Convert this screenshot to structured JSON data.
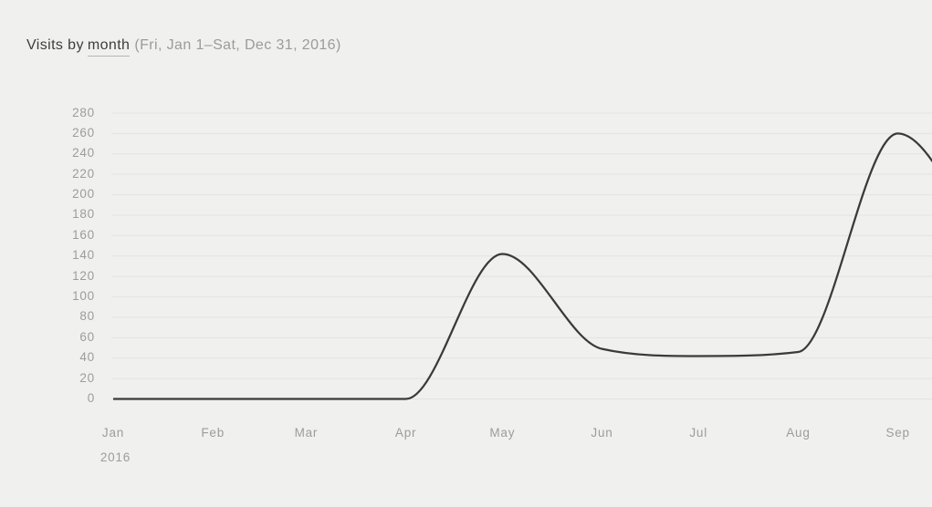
{
  "page": {
    "background": "#f0f0ef"
  },
  "header": {
    "title_prefix": "Visits by",
    "metric_selector": "month",
    "date_range": "(Fri, Jan 1–Sat, Dec 31, 2016)"
  },
  "chart_data": {
    "type": "line",
    "title": "Visits by month",
    "subtitle": "Fri, Jan 1–Sat, Dec 31, 2016",
    "categories": [
      "Jan",
      "Feb",
      "Mar",
      "Apr",
      "May",
      "Jun",
      "Jul",
      "Aug",
      "Sep"
    ],
    "x_year_label": "2016",
    "series": [
      {
        "name": "Visits",
        "values": [
          0,
          0,
          0,
          0,
          142,
          49,
          42,
          46,
          260
        ]
      }
    ],
    "y_ticks": [
      0,
      20,
      40,
      60,
      80,
      100,
      120,
      140,
      160,
      180,
      200,
      220,
      240,
      260,
      280
    ],
    "ylim": [
      0,
      280
    ],
    "grid": "horizontal",
    "legend": "none",
    "clipped_at_right_edge": true,
    "right_edge_exit_value": 230,
    "line_color": "#3a3a3a",
    "grid_color": "#e3e3e1",
    "label_color": "#9c9c99"
  }
}
